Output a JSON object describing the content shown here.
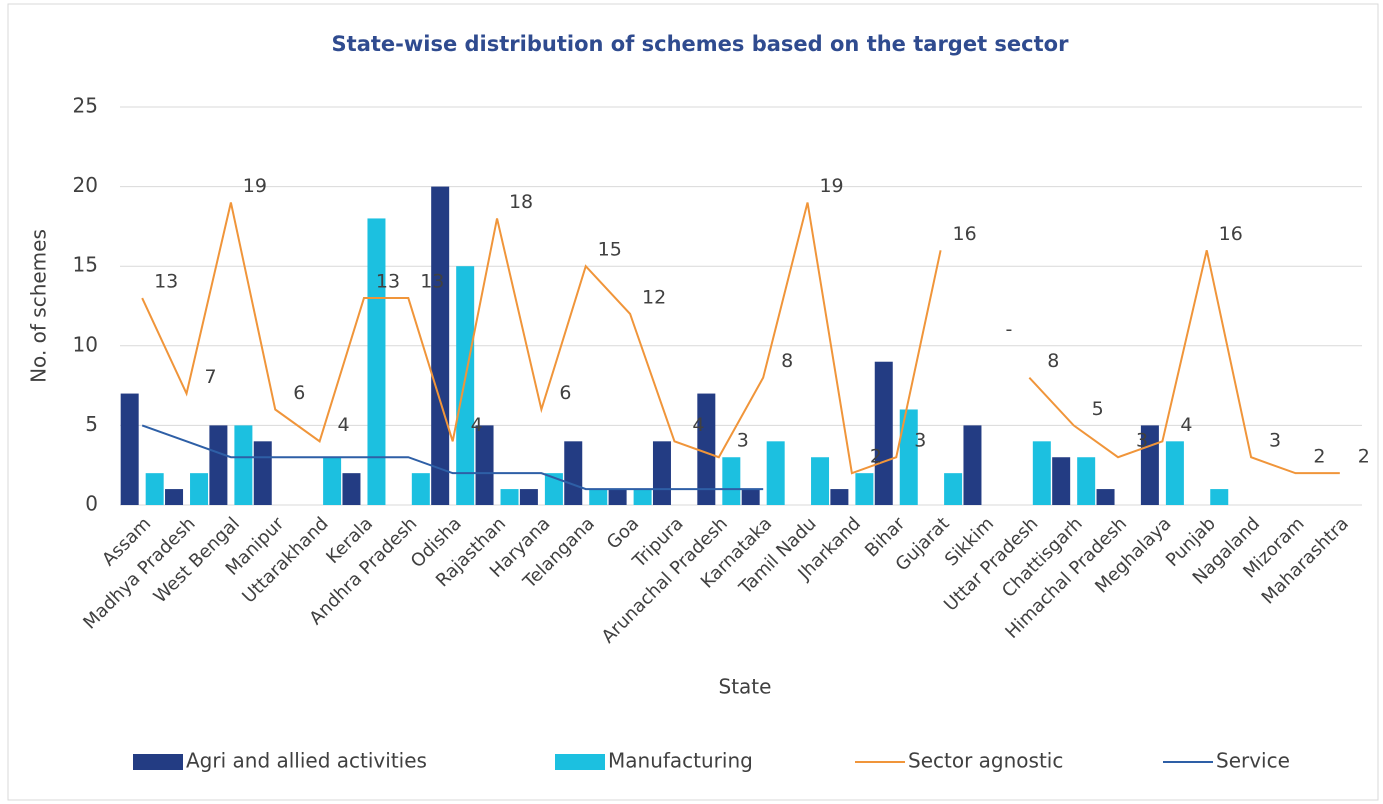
{
  "chart_data": {
    "type": "combo",
    "title": "State-wise distribution of schemes based on the target sector",
    "y_label": "No. of schemes",
    "x_label": "State",
    "categories": [
      "Assam",
      "Madhya Pradesh",
      "West Bengal",
      "Manipur",
      "Uttarakhand",
      "Kerala",
      "Andhra Pradesh",
      "Odisha",
      "Rajasthan",
      "Haryana",
      "Telangana",
      "Goa",
      "Tripura",
      "Arunachal Pradesh",
      "Karnataka",
      "Tamil Nadu",
      "Jharkand",
      "Bihar",
      "Gujarat",
      "Sikkim",
      "Uttar Pradesh",
      "Chattisgarh",
      "Himachal Pradesh",
      "Meghalaya",
      "Punjab",
      "Nagaland",
      "Mizoram",
      "Maharashtra"
    ],
    "series": [
      {
        "name": "Agri and allied activities",
        "type": "bar",
        "color": "#233c83",
        "values": [
          7,
          1,
          5,
          4,
          0,
          2,
          0,
          20,
          5,
          1,
          4,
          1,
          4,
          7,
          1,
          0,
          1,
          9,
          0,
          5,
          0,
          3,
          1,
          5,
          0,
          0,
          0,
          0
        ]
      },
      {
        "name": "Manufacturing",
        "type": "bar",
        "color": "#1cc0e0",
        "values": [
          2,
          2,
          5,
          0,
          3,
          18,
          2,
          15,
          1,
          2,
          1,
          1,
          0,
          3,
          4,
          3,
          2,
          6,
          2,
          0,
          4,
          3,
          0,
          4,
          1,
          0,
          0,
          0
        ]
      },
      {
        "name": "Sector agnostic",
        "type": "line",
        "color": "#f0953a",
        "values": [
          13,
          7,
          19,
          6,
          4,
          13,
          13,
          4,
          18,
          6,
          15,
          12,
          4,
          3,
          8,
          19,
          2,
          3,
          16,
          null,
          8,
          5,
          3,
          4,
          16,
          3,
          2,
          2
        ],
        "value_labels": [
          "13",
          "7",
          "19",
          "6",
          "4",
          "13",
          "13",
          "4",
          "18",
          "6",
          "15",
          "12",
          "4",
          "3",
          "8",
          "19",
          "2",
          "3",
          "16",
          "-",
          "8",
          "5",
          "3",
          "4",
          "16",
          "3",
          "2",
          "2"
        ]
      },
      {
        "name": "Service",
        "type": "line",
        "color": "#2e5fa6",
        "values": [
          5,
          4,
          3,
          3,
          3,
          3,
          3,
          2,
          2,
          2,
          1,
          1,
          1,
          1,
          1,
          null,
          null,
          null,
          null,
          null,
          null,
          null,
          null,
          null,
          null,
          null,
          null,
          null
        ]
      }
    ],
    "ylim": [
      0,
      25
    ],
    "yticks": [
      0,
      5,
      10,
      15,
      20,
      25
    ],
    "grid": true,
    "legend": "bottom"
  }
}
